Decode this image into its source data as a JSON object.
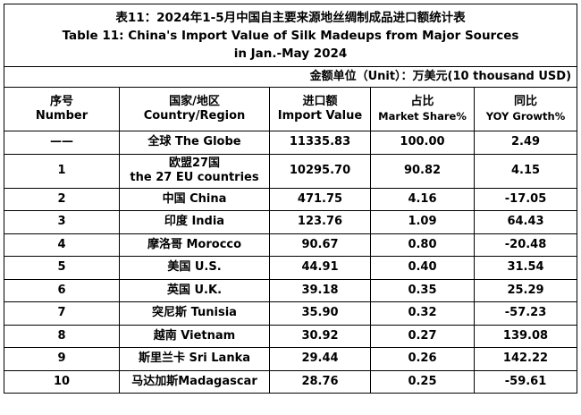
{
  "title": {
    "cn": "表11：2024年1-5月中国自主要来源地丝绸制成品进口额统计表",
    "en": "Table 11: China's Import Value of Silk Madeups from Major Sources",
    "period": "in Jan.-May 2024"
  },
  "unit": "金额单位（Unit）：万美元(10 thousand USD)",
  "headers": {
    "no": {
      "cn": "序号",
      "en": "Number"
    },
    "region": {
      "cn": "国家/地区",
      "en": "Country/Region"
    },
    "value": {
      "cn": "进口额",
      "en": "Import Value"
    },
    "share": {
      "cn": "占比",
      "en": "Market Share%"
    },
    "growth": {
      "cn": "同比",
      "en": "YOY Growth%"
    }
  },
  "rows": [
    {
      "no": "——",
      "region": "全球 The Globe",
      "value": "11335.83",
      "share": "100.00",
      "growth": "2.49"
    },
    {
      "no": "1",
      "region_cn": "欧盟27国",
      "region_en": "the 27 EU countries",
      "value": "10295.70",
      "share": "90.82",
      "growth": "4.15"
    },
    {
      "no": "2",
      "region": "中国 China",
      "value": "471.75",
      "share": "4.16",
      "growth": "-17.05"
    },
    {
      "no": "3",
      "region": "印度 India",
      "value": "123.76",
      "share": "1.09",
      "growth": "64.43"
    },
    {
      "no": "4",
      "region": "摩洛哥 Morocco",
      "value": "90.67",
      "share": "0.80",
      "growth": "-20.48"
    },
    {
      "no": "5",
      "region": "美国 U.S.",
      "value": "44.91",
      "share": "0.40",
      "growth": "31.54"
    },
    {
      "no": "6",
      "region": "英国 U.K.",
      "value": "39.18",
      "share": "0.35",
      "growth": "25.29"
    },
    {
      "no": "7",
      "region": "突尼斯 Tunisia",
      "value": "35.90",
      "share": "0.32",
      "growth": "-57.23"
    },
    {
      "no": "8",
      "region": "越南 Vietnam",
      "value": "30.92",
      "share": "0.27",
      "growth": "139.08"
    },
    {
      "no": "9",
      "region": "斯里兰卡 Sri Lanka",
      "value": "29.44",
      "share": "0.26",
      "growth": "142.22"
    },
    {
      "no": "10",
      "region": "马达加斯Madagascar",
      "value": "28.76",
      "share": "0.25",
      "growth": "-59.61"
    }
  ]
}
